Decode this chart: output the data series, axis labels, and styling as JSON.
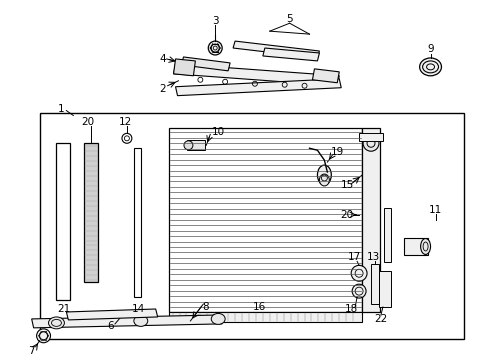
{
  "bg_color": "#ffffff",
  "line_color": "#000000",
  "gray_color": "#888888",
  "fig_width": 4.89,
  "fig_height": 3.6
}
